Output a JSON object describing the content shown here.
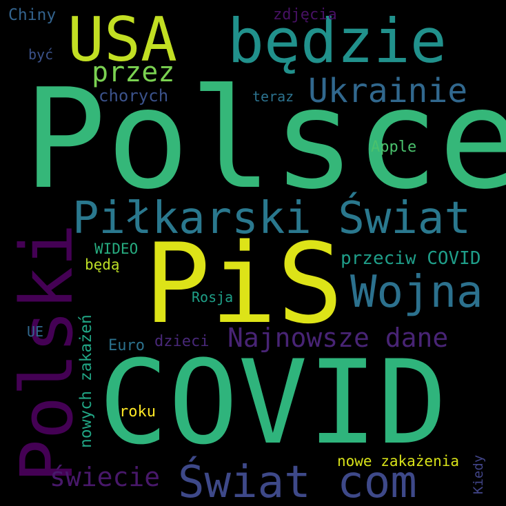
{
  "background_color": "#000000",
  "words": [
    {
      "text": "Polsce",
      "color": "#35b779"
    },
    {
      "text": "PiS",
      "color": "#dde318"
    },
    {
      "text": "COVID",
      "color": "#2fb47c"
    },
    {
      "text": "będzie",
      "color": "#21918c"
    },
    {
      "text": "USA",
      "color": "#c2df23"
    },
    {
      "text": "Polski",
      "color": "#440154"
    },
    {
      "text": "Piłkarski Świat",
      "color": "#2a788e"
    },
    {
      "text": "Świat com",
      "color": "#3e4989"
    },
    {
      "text": "Wojna",
      "color": "#2c718e"
    },
    {
      "text": "Ukrainie",
      "color": "#31688e"
    },
    {
      "text": "Najnowsze dane",
      "color": "#482475"
    },
    {
      "text": "przez",
      "color": "#7ad151"
    },
    {
      "text": "przeciw COVID",
      "color": "#1f9e89"
    },
    {
      "text": "świecie",
      "color": "#48186a"
    },
    {
      "text": "chorych",
      "color": "#3b528b"
    },
    {
      "text": "Chiny",
      "color": "#33638d"
    },
    {
      "text": "zdjęcia",
      "color": "#471164"
    },
    {
      "text": "być",
      "color": "#3b528b"
    },
    {
      "text": "teraz",
      "color": "#2c728e"
    },
    {
      "text": "Apple",
      "color": "#4ac16d"
    },
    {
      "text": "WIDEO",
      "color": "#27ad81"
    },
    {
      "text": "będą",
      "color": "#bddf26"
    },
    {
      "text": "Rosja",
      "color": "#1fa088"
    },
    {
      "text": "nowych zakażeń",
      "color": "#21a685"
    },
    {
      "text": "UE",
      "color": "#31688e"
    },
    {
      "text": "Euro",
      "color": "#2c728e"
    },
    {
      "text": "dzieci",
      "color": "#482878"
    },
    {
      "text": "roku",
      "color": "#fde725"
    },
    {
      "text": "nowe zakażenia",
      "color": "#d8e219"
    },
    {
      "text": "Kiedy",
      "color": "#414487"
    }
  ]
}
